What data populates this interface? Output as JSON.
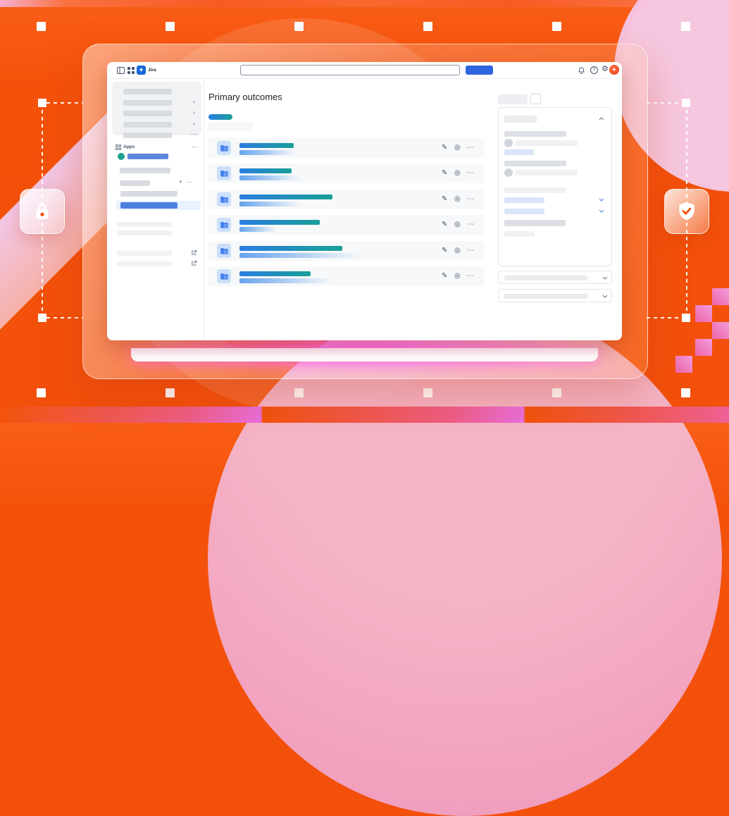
{
  "topbar": {
    "app_label": "Jira",
    "search_value": "",
    "search_placeholder": ""
  },
  "sidebar": {
    "apps_label": "Apps",
    "add_label": "+",
    "more_label": "⋯",
    "chevron_label": "›"
  },
  "main": {
    "title": "Primary outcomes",
    "row_actions": {
      "edit": "✎",
      "watch": "◎",
      "more": "⋯"
    },
    "rows": [
      {
        "top_bar_width": 77,
        "bottom_bar_width": 80
      },
      {
        "top_bar_width": 74,
        "bottom_bar_width": 86
      },
      {
        "top_bar_width": 132,
        "bottom_bar_width": 85
      },
      {
        "top_bar_width": 114,
        "bottom_bar_width": 53
      },
      {
        "top_bar_width": 146,
        "bottom_bar_width": 172
      },
      {
        "top_bar_width": 101,
        "bottom_bar_width": 132
      }
    ]
  },
  "topbar_icons": {
    "settings_glyph": "⚙",
    "help_glyph": "?"
  },
  "colors": {
    "accent_blue": "#2E65DE",
    "jira_blue": "#1868DB",
    "teal": "#18A097",
    "orange": "#F4520B",
    "selected_blue": "#4C7FDF",
    "background_orange": "#F4520B"
  }
}
